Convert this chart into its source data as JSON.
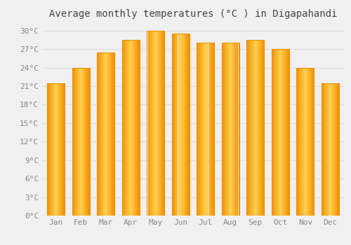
{
  "title": "Average monthly temperatures (°C ) in Digapahandi",
  "months": [
    "Jan",
    "Feb",
    "Mar",
    "Apr",
    "May",
    "Jun",
    "Jul",
    "Aug",
    "Sep",
    "Oct",
    "Nov",
    "Dec"
  ],
  "values": [
    21.5,
    24.0,
    26.5,
    28.5,
    30.0,
    29.5,
    28.0,
    28.0,
    28.5,
    27.0,
    24.0,
    21.5
  ],
  "bar_color_center": "#FFD050",
  "bar_color_edge": "#F09000",
  "ylim": [
    0,
    31
  ],
  "ytick_values": [
    0,
    3,
    6,
    9,
    12,
    15,
    18,
    21,
    24,
    27,
    30
  ],
  "ytick_labels": [
    "0°C",
    "3°C",
    "6°C",
    "9°C",
    "12°C",
    "15°C",
    "18°C",
    "21°C",
    "24°C",
    "27°C",
    "30°C"
  ],
  "grid_color": "#dddddd",
  "background_color": "#f0f0f0",
  "title_fontsize": 10,
  "tick_fontsize": 8,
  "tick_color": "#888888",
  "font_family": "monospace",
  "bar_width": 0.7,
  "num_gradient_strips": 100
}
